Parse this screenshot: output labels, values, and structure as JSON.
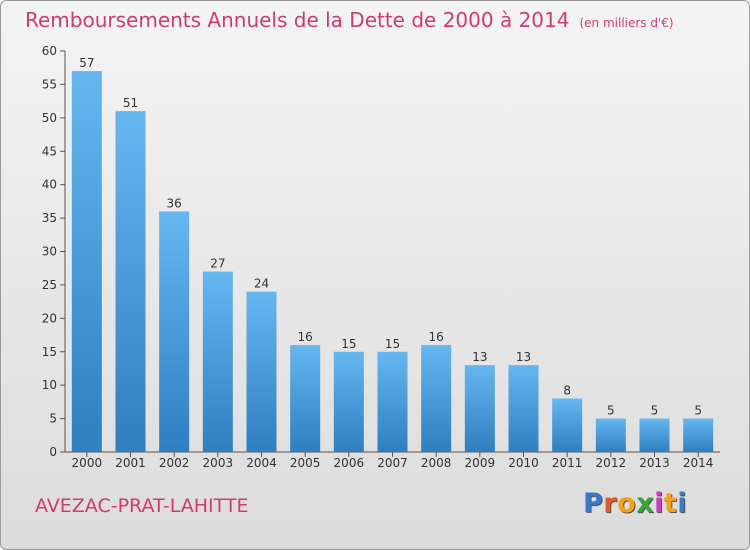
{
  "header": {
    "title": "Remboursements Annuels de la Dette de 2000 à 2014",
    "unit": "(en milliers d'€)"
  },
  "footer": {
    "commune": "AVEZAC-PRAT-LAHITTE",
    "logo_text": "Proxiti",
    "logo_colors": [
      "#3a78c9",
      "#e8582c",
      "#f2a31b",
      "#3aa53a",
      "#c83ec0",
      "#f2a31b",
      "#3a78c9"
    ]
  },
  "colors": {
    "bar_top": "#66b6f0",
    "bar_bottom": "#2f7fc0",
    "title": "#d23a6e"
  },
  "chart_data": {
    "type": "bar",
    "categories": [
      "2000",
      "2001",
      "2002",
      "2003",
      "2004",
      "2005",
      "2006",
      "2007",
      "2008",
      "2009",
      "2010",
      "2011",
      "2012",
      "2013",
      "2014"
    ],
    "values": [
      57,
      51,
      36,
      27,
      24,
      16,
      15,
      15,
      16,
      13,
      13,
      8,
      5,
      5,
      5
    ],
    "data_labels": [
      "57",
      "51",
      "36",
      "27",
      "24",
      "16",
      "15",
      "15",
      "16",
      "13",
      "13",
      "8",
      "5",
      "5",
      "5"
    ],
    "y_ticks": [
      "0",
      "5",
      "10",
      "15",
      "20",
      "25",
      "30",
      "35",
      "40",
      "45",
      "50",
      "55",
      "60"
    ],
    "ylim": [
      0,
      60
    ],
    "grid": false
  }
}
